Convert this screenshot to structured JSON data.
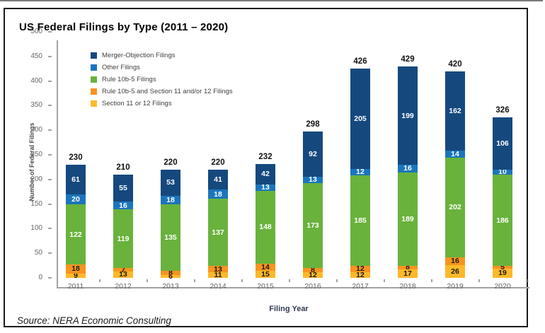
{
  "source": "Source: NERA Economic Consulting",
  "chart_data": {
    "type": "bar",
    "stacked": true,
    "title": "US Federal Filings by Type (2011 – 2020)",
    "xlabel": "Filing Year",
    "ylabel": "Number of Federal Filings",
    "ylim": [
      0,
      500
    ],
    "yticks": [
      0,
      50,
      100,
      150,
      200,
      250,
      300,
      350,
      400,
      450,
      500
    ],
    "grid": false,
    "legend_position": "top-left-inside",
    "categories": [
      "2011",
      "2012",
      "2013",
      "2014",
      "2015",
      "2016",
      "2017",
      "2018",
      "2019",
      "2020"
    ],
    "series": [
      {
        "name": "Merger-Objection Filings",
        "color": "#15497e",
        "label_color": "#ffffff",
        "values": [
          61,
          55,
          53,
          41,
          42,
          92,
          205,
          199,
          162,
          106
        ]
      },
      {
        "name": "Other Filings",
        "color": "#1b75bc",
        "label_color": "#ffffff",
        "values": [
          20,
          16,
          18,
          18,
          13,
          13,
          12,
          16,
          14,
          10
        ]
      },
      {
        "name": "Rule 10b-5 Filings",
        "color": "#69b23c",
        "label_color": "#ffffff",
        "values": [
          122,
          119,
          135,
          137,
          148,
          173,
          185,
          189,
          202,
          186
        ]
      },
      {
        "name": "Rule 10b-5 and Section 11 and/or 12 Filings",
        "color": "#f7941e",
        "label_color": "#1a1a1a",
        "values": [
          18,
          7,
          8,
          13,
          14,
          8,
          12,
          8,
          16,
          5
        ]
      },
      {
        "name": "Section 11 or 12 Filings",
        "color": "#fdb92a",
        "label_color": "#1a1a1a",
        "values": [
          9,
          13,
          6,
          11,
          15,
          12,
          12,
          17,
          26,
          19
        ]
      }
    ],
    "stack_order_bottom_to_top": [
      "Section 11 or 12 Filings",
      "Rule 10b-5 and Section 11 and/or 12 Filings",
      "Rule 10b-5 Filings",
      "Other Filings",
      "Merger-Objection Filings"
    ],
    "totals": [
      230,
      210,
      220,
      220,
      232,
      298,
      426,
      429,
      420,
      326
    ]
  }
}
